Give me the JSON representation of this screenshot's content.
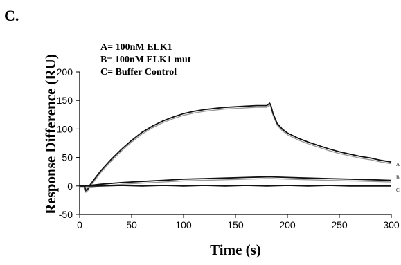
{
  "panel_label": "C.",
  "chart_data": {
    "type": "line",
    "title": "",
    "xlabel": "Time (s)",
    "ylabel": "Response Difference (RU)",
    "xlim": [
      0,
      300
    ],
    "ylim": [
      -50,
      200
    ],
    "x_ticks": [
      0,
      50,
      100,
      150,
      200,
      250,
      300
    ],
    "y_ticks": [
      -50,
      0,
      50,
      100,
      150,
      200
    ],
    "legend_position": "top-left",
    "legend": [
      "A= 100nM ELK1",
      "B= 100nM ELK1 mut",
      "C= Buffer Control"
    ],
    "curve_labels": [
      "A",
      "B",
      "C"
    ],
    "series": [
      {
        "name": "A",
        "x": [
          0,
          3,
          5,
          6,
          8,
          10,
          15,
          20,
          30,
          40,
          50,
          60,
          70,
          80,
          90,
          100,
          110,
          120,
          130,
          140,
          150,
          160,
          170,
          180,
          183,
          184,
          186,
          190,
          195,
          200,
          210,
          220,
          230,
          240,
          250,
          260,
          270,
          280,
          290,
          300
        ],
        "y": [
          0,
          0,
          0,
          -8,
          -5,
          2,
          14,
          26,
          46,
          64,
          80,
          94,
          105,
          114,
          121,
          127,
          131,
          134,
          136,
          138,
          139,
          140,
          141,
          141,
          145,
          142,
          128,
          110,
          100,
          93,
          84,
          77,
          71,
          65,
          60,
          56,
          52,
          49,
          45,
          42
        ]
      },
      {
        "name": "B",
        "x": [
          0,
          5,
          10,
          20,
          40,
          60,
          80,
          100,
          120,
          140,
          160,
          180,
          185,
          200,
          220,
          240,
          260,
          280,
          300
        ],
        "y": [
          0,
          0,
          1,
          3,
          6,
          8,
          10,
          12,
          13,
          14,
          15,
          16,
          16,
          15,
          14,
          13,
          12,
          11,
          10
        ]
      },
      {
        "name": "C",
        "x": [
          0,
          20,
          40,
          60,
          80,
          100,
          120,
          140,
          160,
          180,
          200,
          220,
          240,
          260,
          280,
          300
        ],
        "y": [
          0,
          0,
          1,
          0,
          1,
          0,
          1,
          0,
          1,
          0,
          1,
          0,
          1,
          0,
          0,
          0
        ]
      }
    ],
    "colors": {
      "line": "#111111",
      "shadow": "#9a9a9a"
    }
  }
}
